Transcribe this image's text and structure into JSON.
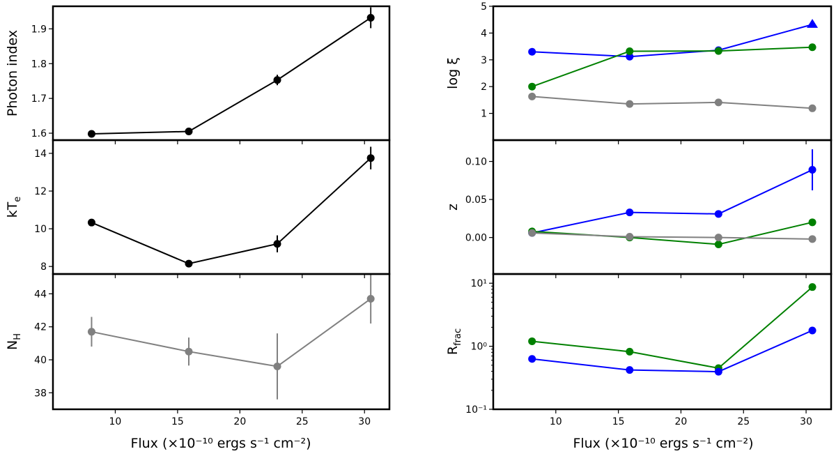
{
  "figure": {
    "left_xlabel": "Flux (×10⁻¹⁰ ergs s⁻¹ cm⁻²)",
    "right_xlabel": "Flux (×10⁻¹⁰ ergs s⁻¹ cm⁻²)"
  },
  "chart_data": [
    {
      "id": "photon-index",
      "type": "line",
      "column": "left",
      "row": 0,
      "scale": "linear",
      "ylabel": "Photon index",
      "xlabel": "",
      "xlim": [
        5,
        32
      ],
      "ylim": [
        1.58,
        1.965
      ],
      "yticks": [
        1.6,
        1.7,
        1.8,
        1.9
      ],
      "ytick_labels": [
        "1.6",
        "1.7",
        "1.8",
        "1.9"
      ],
      "xticks": [
        10,
        15,
        20,
        25,
        30
      ],
      "xtick_labels": [],
      "series": [
        {
          "name": "photon-index",
          "color": "#000000",
          "marker": "circle",
          "x": [
            8.1,
            15.9,
            23.0,
            30.5
          ],
          "y": [
            1.598,
            1.605,
            1.753,
            1.932
          ],
          "yerr": [
            0.004,
            0.004,
            0.015,
            0.03
          ]
        }
      ]
    },
    {
      "id": "kte",
      "type": "line",
      "column": "left",
      "row": 1,
      "scale": "linear",
      "ylabel": "kT",
      "ylabel_sub": "e",
      "xlabel": "",
      "xlim": [
        5,
        32
      ],
      "ylim": [
        7.6,
        14.7
      ],
      "yticks": [
        8,
        10,
        12,
        14
      ],
      "ytick_labels": [
        "8",
        "10",
        "12",
        "14"
      ],
      "xticks": [
        10,
        15,
        20,
        25,
        30
      ],
      "xtick_labels": [],
      "series": [
        {
          "name": "kTe",
          "color": "#000000",
          "marker": "circle",
          "x": [
            8.1,
            15.9,
            23.0,
            30.5
          ],
          "y": [
            10.33,
            8.15,
            9.2,
            13.75
          ],
          "yerr": [
            0.1,
            0.1,
            0.45,
            0.6
          ]
        }
      ]
    },
    {
      "id": "nh",
      "type": "line",
      "column": "left",
      "row": 2,
      "scale": "linear",
      "ylabel": "N",
      "ylabel_sub": "H",
      "xlabel": "",
      "xlim": [
        5,
        32
      ],
      "ylim": [
        37.0,
        45.2
      ],
      "yticks": [
        38,
        40,
        42,
        44
      ],
      "ytick_labels": [
        "38",
        "40",
        "42",
        "44"
      ],
      "xticks": [
        10,
        15,
        20,
        25,
        30
      ],
      "xtick_labels": [
        "10",
        "15",
        "20",
        "25",
        "30"
      ],
      "series": [
        {
          "name": "NH",
          "color": "#808080",
          "marker": "circle",
          "x": [
            8.1,
            15.9,
            23.0,
            30.5
          ],
          "y": [
            41.7,
            40.5,
            39.6,
            43.7
          ],
          "yerr": [
            0.9,
            0.85,
            2.0,
            1.5
          ]
        }
      ]
    },
    {
      "id": "log-xi",
      "type": "line",
      "column": "right",
      "row": 0,
      "scale": "linear",
      "ylabel": "log  ξ",
      "xlabel": "",
      "xlim": [
        5,
        32
      ],
      "ylim": [
        0.0,
        5.0
      ],
      "yticks": [
        1,
        2,
        3,
        4,
        5
      ],
      "ytick_labels": [
        "1",
        "2",
        "3",
        "4",
        "5"
      ],
      "xticks": [
        10,
        15,
        20,
        25,
        30
      ],
      "xtick_labels": [],
      "series": [
        {
          "name": "blue",
          "color": "#0000ff",
          "marker": "circle",
          "last_marker": "triangle",
          "x": [
            8.1,
            15.9,
            23.0,
            30.5
          ],
          "y": [
            3.3,
            3.12,
            3.36,
            4.32
          ]
        },
        {
          "name": "green",
          "color": "#008000",
          "marker": "circle",
          "x": [
            8.1,
            15.9,
            23.0,
            30.5
          ],
          "y": [
            2.0,
            3.32,
            3.33,
            3.47
          ]
        },
        {
          "name": "gray",
          "color": "#808080",
          "marker": "circle",
          "x": [
            8.1,
            15.9,
            23.0,
            30.5
          ],
          "y": [
            1.63,
            1.35,
            1.41,
            1.19
          ]
        }
      ]
    },
    {
      "id": "z",
      "type": "line",
      "column": "right",
      "row": 1,
      "scale": "linear",
      "ylabel": "z",
      "xlabel": "",
      "xlim": [
        5,
        32
      ],
      "ylim": [
        -0.048,
        0.128
      ],
      "yticks": [
        0.0,
        0.05,
        0.1
      ],
      "ytick_labels": [
        "0.00",
        "0.05",
        "0.10"
      ],
      "xticks": [
        10,
        15,
        20,
        25,
        30
      ],
      "xtick_labels": [],
      "series": [
        {
          "name": "blue",
          "color": "#0000ff",
          "marker": "circle",
          "x": [
            8.1,
            15.9,
            23.0,
            30.5
          ],
          "y": [
            0.006,
            0.033,
            0.031,
            0.089
          ],
          "yerr": [
            0.0,
            0.0,
            0.0,
            0.027
          ]
        },
        {
          "name": "green",
          "color": "#008000",
          "marker": "circle",
          "x": [
            8.1,
            15.9,
            23.0,
            30.5
          ],
          "y": [
            0.008,
            0.0,
            -0.009,
            0.02
          ]
        },
        {
          "name": "gray",
          "color": "#808080",
          "marker": "circle",
          "x": [
            8.1,
            15.9,
            23.0,
            30.5
          ],
          "y": [
            0.006,
            0.001,
            0.0,
            -0.002
          ]
        }
      ]
    },
    {
      "id": "rfrac",
      "type": "line",
      "column": "right",
      "row": 2,
      "scale": "log",
      "ylabel": "R",
      "ylabel_sub": "frac",
      "xlabel": "",
      "xlim": [
        5,
        32
      ],
      "ylim": [
        0.1,
        14
      ],
      "yticks": [
        0.1,
        1,
        10
      ],
      "ytick_labels": [
        "10⁻¹",
        "10⁰",
        "10¹"
      ],
      "xticks": [
        10,
        15,
        20,
        25,
        30
      ],
      "xtick_labels": [
        "10",
        "15",
        "20",
        "25",
        "30"
      ],
      "series": [
        {
          "name": "green",
          "color": "#008000",
          "marker": "circle",
          "x": [
            8.1,
            15.9,
            23.0,
            30.5
          ],
          "y": [
            1.2,
            0.82,
            0.45,
            8.7
          ]
        },
        {
          "name": "blue",
          "color": "#0000ff",
          "marker": "circle",
          "x": [
            8.1,
            15.9,
            23.0,
            30.5
          ],
          "y": [
            0.63,
            0.42,
            0.395,
            1.78
          ]
        }
      ]
    }
  ]
}
